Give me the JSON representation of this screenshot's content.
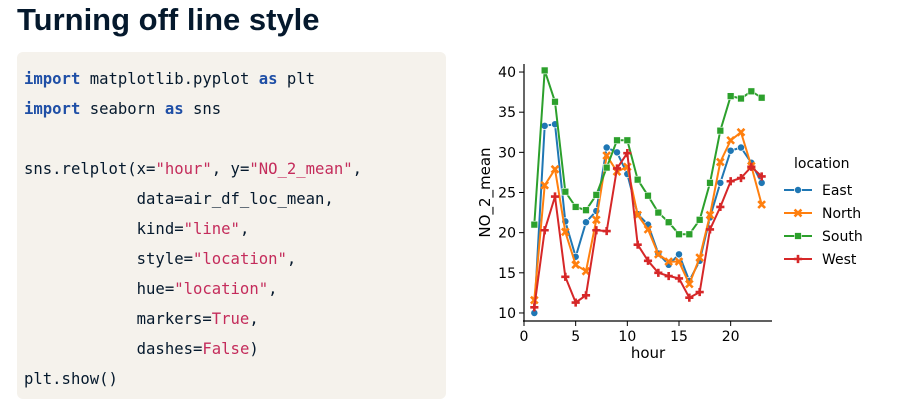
{
  "slide": {
    "title": "Turning off line style"
  },
  "code": {
    "line1": {
      "kw1": "import",
      "mod": " matplotlib.pyplot ",
      "kw2": "as",
      "alias": " plt"
    },
    "line2": {
      "kw1": "import",
      "mod": " seaborn ",
      "kw2": "as",
      "alias": " sns"
    },
    "line4": {
      "pre": "sns.relplot(x=",
      "s1": "\"hour\"",
      "mid": ", y=",
      "s2": "\"NO_2_mean\"",
      "post": ","
    },
    "line5": {
      "text": "            data=air_df_loc_mean,"
    },
    "line6": {
      "pre": "            kind=",
      "s": "\"line\"",
      "post": ","
    },
    "line7": {
      "pre": "            style=",
      "s": "\"location\"",
      "post": ","
    },
    "line8": {
      "pre": "            hue=",
      "s": "\"location\"",
      "post": ","
    },
    "line9": {
      "pre": "            markers=",
      "s": "True",
      "post": ","
    },
    "line10": {
      "pre": "            dashes=",
      "s": "False",
      "post": ")"
    },
    "line11": {
      "text": "plt.show()"
    }
  },
  "chart_data": {
    "type": "line",
    "xlabel": "hour",
    "ylabel": "NO_2_mean",
    "xlim": [
      0,
      24
    ],
    "ylim": [
      9,
      41
    ],
    "xticks": [
      0,
      5,
      10,
      15,
      20
    ],
    "yticks": [
      10,
      15,
      20,
      25,
      30,
      35,
      40
    ],
    "grid": false,
    "legend_title": "location",
    "legend_position": "right",
    "x": [
      1,
      2,
      3,
      4,
      5,
      6,
      7,
      8,
      9,
      10,
      11,
      12,
      13,
      14,
      15,
      16,
      17,
      18,
      19,
      20,
      21,
      22,
      23
    ],
    "series": [
      {
        "name": "East",
        "color": "#1f77b4",
        "marker": "circle",
        "values": [
          10.0,
          33.3,
          33.5,
          21.4,
          17.0,
          21.3,
          22.7,
          30.6,
          30.0,
          27.3,
          22.3,
          21.0,
          17.4,
          16.0,
          17.3,
          14.0,
          16.5,
          21.9,
          26.2,
          30.2,
          30.6,
          28.7,
          26.2
        ]
      },
      {
        "name": "North",
        "color": "#ff7f0e",
        "marker": "x",
        "values": [
          11.6,
          25.9,
          27.9,
          20.1,
          16.0,
          15.2,
          21.6,
          29.6,
          27.6,
          28.2,
          22.2,
          20.4,
          17.3,
          16.4,
          16.4,
          13.6,
          16.9,
          22.2,
          28.8,
          31.5,
          32.5,
          28.3,
          23.5
        ]
      },
      {
        "name": "South",
        "color": "#2ca02c",
        "marker": "square",
        "values": [
          21.0,
          40.2,
          36.3,
          25.1,
          23.2,
          22.8,
          24.7,
          28.1,
          31.5,
          31.5,
          26.6,
          24.6,
          22.5,
          21.3,
          19.8,
          19.8,
          21.6,
          26.2,
          32.7,
          37.0,
          36.7,
          37.6,
          36.8
        ]
      },
      {
        "name": "West",
        "color": "#d62728",
        "marker": "plus",
        "values": [
          10.7,
          20.3,
          24.5,
          14.5,
          11.3,
          12.2,
          20.3,
          20.2,
          28.0,
          29.9,
          18.5,
          16.5,
          15.0,
          14.6,
          14.3,
          11.9,
          12.6,
          20.4,
          23.2,
          26.4,
          26.8,
          28.2,
          27.0
        ]
      }
    ]
  }
}
